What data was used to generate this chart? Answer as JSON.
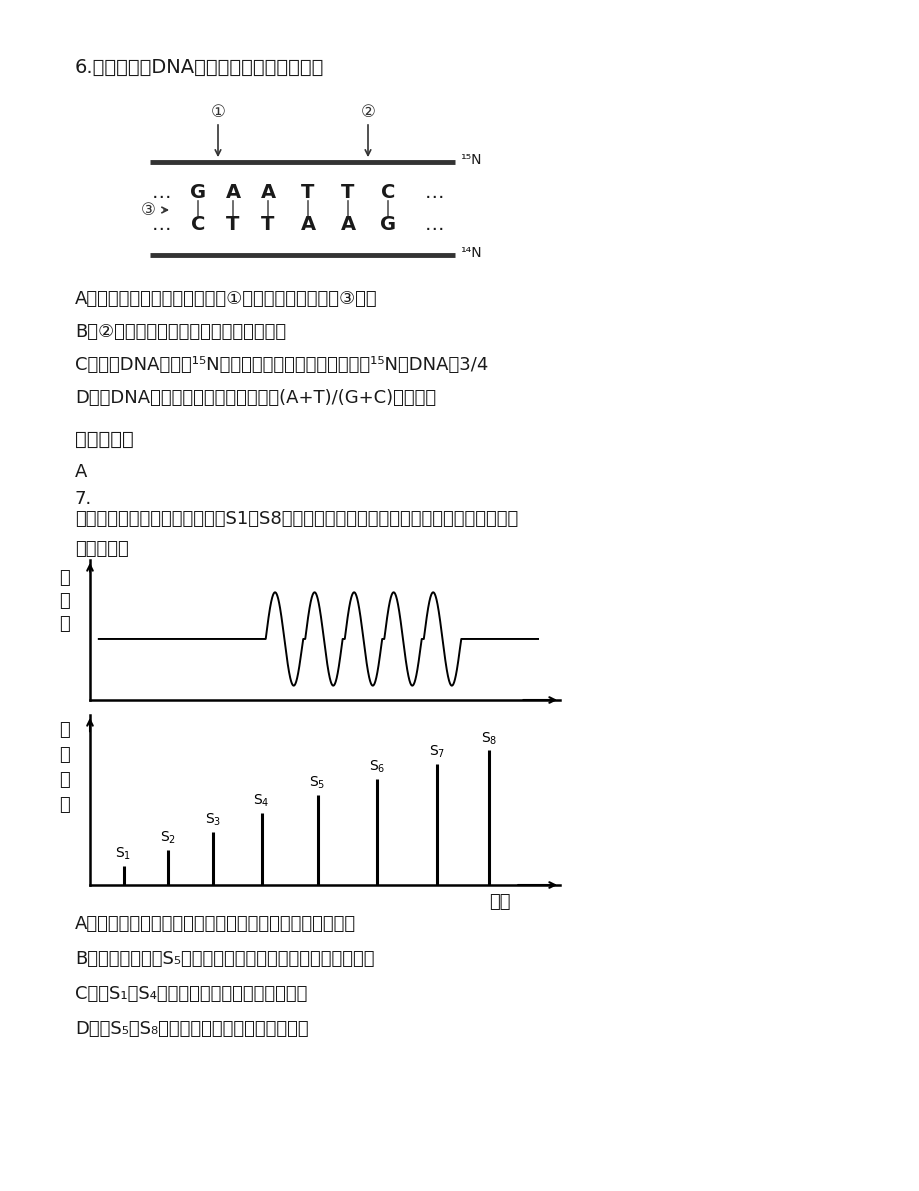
{
  "bg_color": "#ffffff",
  "q6_title": "6.关于如下图DNA分子片段的说法正确的是",
  "q6_optA": "A．限制性核酸内切酶可作用于①部位，解旋酶作用于③部位",
  "q6_optB": "B．②处的碱基缺失导致染色体结构的变异",
  "q6_optC": "C．把此DNA放在含¹⁵N的培养液中复制两代，子代中含¹⁵N的DNA刴3/4",
  "q6_optD": "D．该DNA的特异性表现在碱基种类和(A+T)/(G+C)的比例上",
  "answer_label": "参考答案：",
  "answer_q6": "A",
  "q7_num": "7.",
  "q7_title_line1": "右图表示将刺激强度逐渐增加（S1～S8），一个神经细胞细胞膜电位的变化规律，下列叙",
  "q7_title_line2": "述正确的是",
  "q7_optA": "A．刺激要达到一定的强度才能诱导神经细胞产生动作电位",
  "q7_optB": "B．刺激强度达到S₅以后，随刺激强度踹加动作电位逐渐增强",
  "q7_optC": "C．在S₁～S₄期间，细胞膜上没有离子的进出",
  "q7_optD": "D．在S₅～S₈时期，细胞膜的电位是外正内负",
  "dna_bases_top": [
    "G",
    "A",
    "A",
    "T",
    "T",
    "C"
  ],
  "dna_bases_bottom": [
    "C",
    "T",
    "T",
    "A",
    "A",
    "G"
  ],
  "n15_label": "¹⁵N",
  "n14_label": "¹⁴N",
  "mem_ylabel_chars": [
    "膜",
    "电",
    "位"
  ],
  "stim_ylabel_chars": [
    "刺",
    "激",
    "强",
    "度"
  ],
  "time_label": "时间"
}
